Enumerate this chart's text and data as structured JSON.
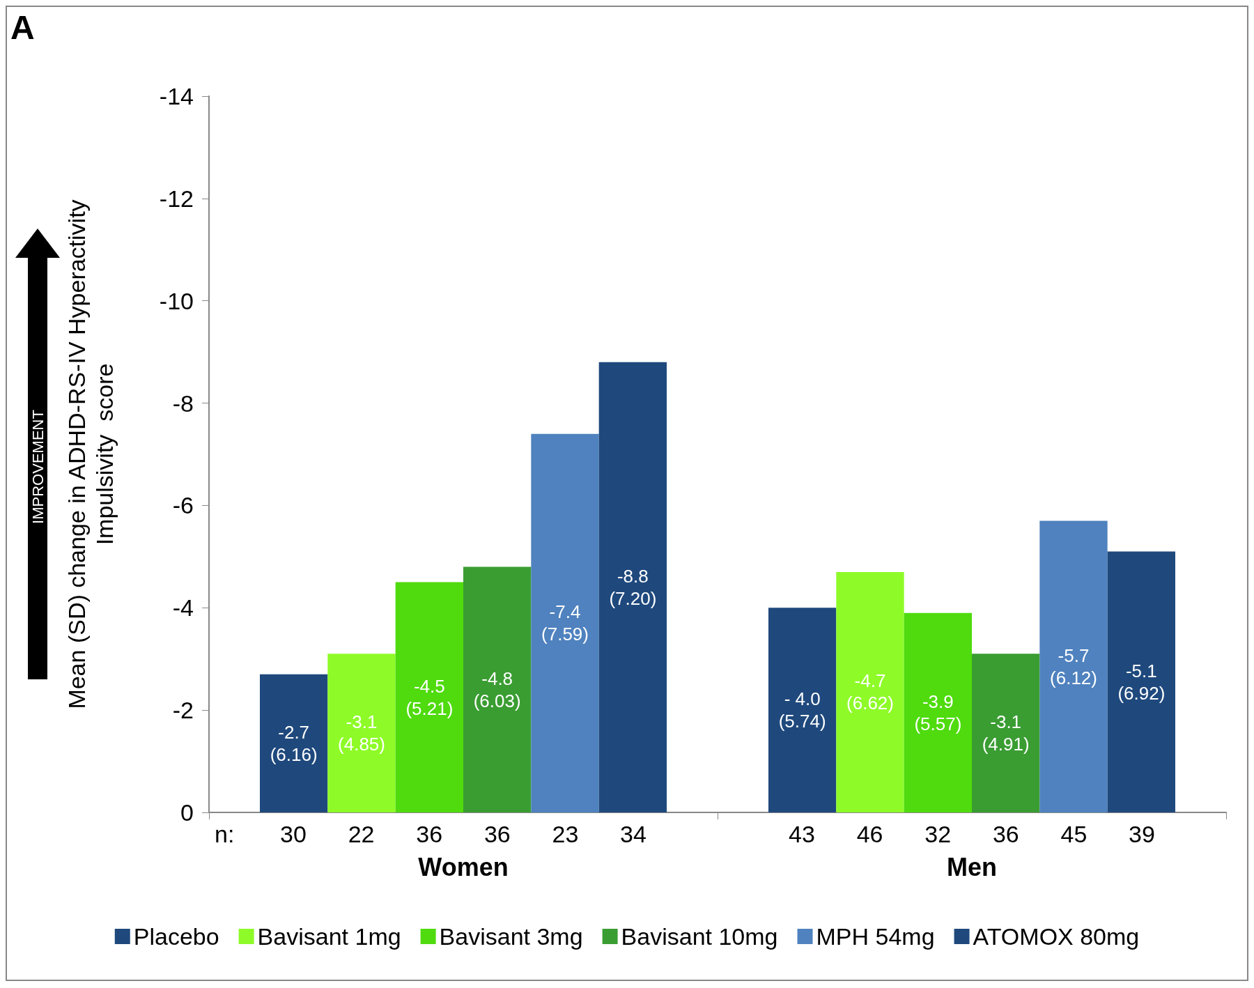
{
  "chart_data": {
    "type": "bar",
    "title": "A",
    "ylabel": "Mean (SD) change in ADHD-RS-IV Hyperactivity\nImpulsivity  score",
    "categories": [
      "Women",
      "Men"
    ],
    "series": [
      {
        "name": "Placebo",
        "color": "#1f497d",
        "values": [
          -2.7,
          -4.0
        ],
        "value_labels": [
          "-2.7\n(6.16)",
          "- 4.0\n(5.74)"
        ]
      },
      {
        "name": "Bavisant 1mg",
        "color": "#8efb28",
        "values": [
          -3.1,
          -4.7
        ],
        "value_labels": [
          "-3.1\n(4.85)",
          "-4.7\n(6.62)"
        ]
      },
      {
        "name": "Bavisant 3mg",
        "color": "#4fdb0e",
        "values": [
          -4.5,
          -3.9
        ],
        "value_labels": [
          "-4.5\n(5.21)",
          "-3.9\n(5.57)"
        ]
      },
      {
        "name": "Bavisant 10mg",
        "color": "#3a9d32",
        "values": [
          -4.8,
          -3.1
        ],
        "value_labels": [
          "-4.8\n(6.03)",
          "-3.1\n(4.91)"
        ]
      },
      {
        "name": "MPH 54mg",
        "color": "#4f82be",
        "values": [
          -7.4,
          -5.7
        ],
        "value_labels": [
          "-7.4\n(7.59)",
          "-5.7\n(6.12)"
        ]
      },
      {
        "name": "ATOMOX 80mg",
        "color": "#1f497d",
        "values": [
          -8.8,
          -5.1
        ],
        "value_labels": [
          "-8.8\n(7.20)",
          "-5.1\n(6.92)"
        ]
      }
    ],
    "ylim": [
      0,
      -14
    ],
    "yticks": [
      0,
      -2,
      -4,
      -6,
      -8,
      -10,
      -12,
      -14
    ],
    "grid": false,
    "legend": "bottom",
    "annotations": [
      "IMPROVEMENT",
      "n:",
      "30",
      "22",
      "36",
      "36",
      "23",
      "34",
      "43",
      "46",
      "32",
      "36",
      "45",
      "39"
    ]
  }
}
